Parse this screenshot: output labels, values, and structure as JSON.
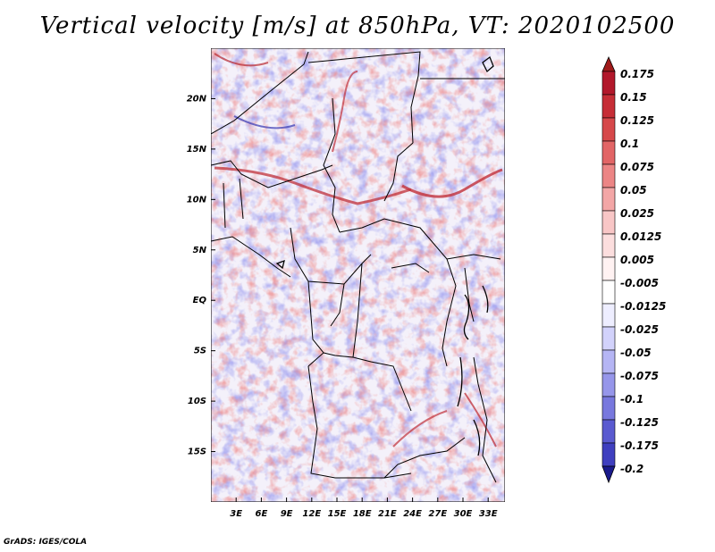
{
  "title": "Vertical velocity [m/s] at 850hPa, VT: 2020102500",
  "credit": "GrADS: IGES/COLA",
  "map": {
    "lon_range": [
      0,
      35
    ],
    "lat_range": [
      -20,
      25
    ],
    "lat_ticks": [
      {
        "value": 20,
        "label": "20N"
      },
      {
        "value": 15,
        "label": "15N"
      },
      {
        "value": 10,
        "label": "10N"
      },
      {
        "value": 5,
        "label": "5N"
      },
      {
        "value": 0,
        "label": "EQ"
      },
      {
        "value": -5,
        "label": "5S"
      },
      {
        "value": -10,
        "label": "10S"
      },
      {
        "value": -15,
        "label": "15S"
      }
    ],
    "lon_ticks": [
      {
        "value": 3,
        "label": "3E"
      },
      {
        "value": 6,
        "label": "6E"
      },
      {
        "value": 9,
        "label": "9E"
      },
      {
        "value": 12,
        "label": "12E"
      },
      {
        "value": 15,
        "label": "15E"
      },
      {
        "value": 18,
        "label": "18E"
      },
      {
        "value": 21,
        "label": "21E"
      },
      {
        "value": 24,
        "label": "24E"
      },
      {
        "value": 27,
        "label": "27E"
      },
      {
        "value": 30,
        "label": "30E"
      },
      {
        "value": 33,
        "label": "33E"
      }
    ]
  },
  "colorbar": {
    "top_color": "#a01a1a",
    "bottom_color": "#1a1a8c",
    "bins": [
      {
        "label": "0.175",
        "color": "#b2182b"
      },
      {
        "label": "0.15",
        "color": "#c62d36"
      },
      {
        "label": "0.125",
        "color": "#d6484a"
      },
      {
        "label": "0.1",
        "color": "#e26566"
      },
      {
        "label": "0.075",
        "color": "#ec8585"
      },
      {
        "label": "0.05",
        "color": "#f3a6a6"
      },
      {
        "label": "0.025",
        "color": "#f8c6c6"
      },
      {
        "label": "0.0125",
        "color": "#fcdede"
      },
      {
        "label": "0.005",
        "color": "#fff2f2"
      },
      {
        "label": "-0.005",
        "color": "#ffffff"
      },
      {
        "label": "-0.0125",
        "color": "#eeeeff"
      },
      {
        "label": "-0.025",
        "color": "#d2d2fb"
      },
      {
        "label": "-0.05",
        "color": "#b5b5f4"
      },
      {
        "label": "-0.075",
        "color": "#9696ea"
      },
      {
        "label": "-0.1",
        "color": "#7878de"
      },
      {
        "label": "-0.125",
        "color": "#5a5ad0"
      },
      {
        "label": "-0.175",
        "color": "#3f3fbf"
      },
      {
        "label": "-0.2",
        "color": "#2828aa"
      }
    ]
  }
}
